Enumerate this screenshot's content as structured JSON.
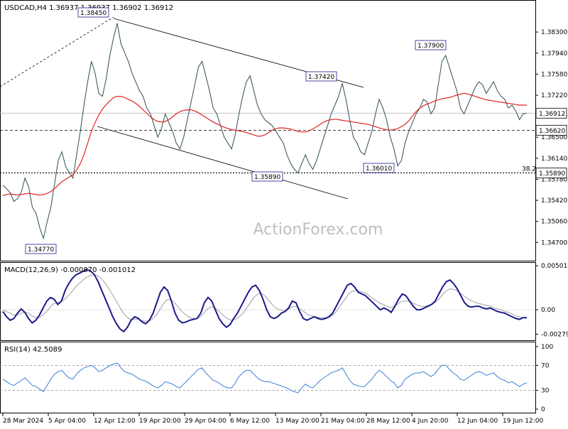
{
  "chart_data": [
    {
      "type": "line",
      "panel": "price",
      "title": "USDCAD,H4  1.36937 1.36937 1.36902 1.36912",
      "watermark": "ActionForex.com",
      "ylim": [
        1.344,
        1.388
      ],
      "y_ticks": [
        "1.38300",
        "1.37940",
        "1.37580",
        "1.37220",
        "1.36860",
        "1.36500",
        "1.36140",
        "1.35780",
        "1.35420",
        "1.35060",
        "1.34700"
      ],
      "x_ticks": [
        "28 Mar 2024",
        "5 Apr 04:00",
        "12 Apr 12:00",
        "19 Apr 20:00",
        "29 Apr 04:00",
        "6 May 12:00",
        "13 May 20:00",
        "21 May 04:00",
        "28 May 12:00",
        "4 Jun 20:00",
        "12 Jun 04:00",
        "19 Jun 12:00"
      ],
      "price_labels": [
        "1.38450",
        "1.37900",
        "1.37420",
        "1.36010",
        "1.35890",
        "1.34770"
      ],
      "current_price": "1.36912",
      "support_level": "1.36620",
      "fib_level": {
        "label": "38.2",
        "value": "1.35890"
      },
      "series": [
        {
          "name": "price",
          "color": "#2f4f4f",
          "values": [
            1.3568,
            1.3562,
            1.3555,
            1.354,
            1.3545,
            1.3556,
            1.358,
            1.3565,
            1.353,
            1.352,
            1.3495,
            1.3477,
            1.3505,
            1.353,
            1.357,
            1.361,
            1.3625,
            1.36,
            1.359,
            1.358,
            1.362,
            1.366,
            1.3705,
            1.3745,
            1.378,
            1.376,
            1.3725,
            1.372,
            1.375,
            1.379,
            1.382,
            1.3845,
            1.381,
            1.3795,
            1.378,
            1.376,
            1.3745,
            1.373,
            1.372,
            1.37,
            1.369,
            1.367,
            1.365,
            1.3665,
            1.369,
            1.3675,
            1.366,
            1.364,
            1.363,
            1.365,
            1.368,
            1.371,
            1.374,
            1.377,
            1.378,
            1.3755,
            1.373,
            1.37,
            1.369,
            1.367,
            1.365,
            1.364,
            1.363,
            1.3655,
            1.369,
            1.372,
            1.3745,
            1.3755,
            1.373,
            1.3705,
            1.369,
            1.368,
            1.3675,
            1.367,
            1.366,
            1.365,
            1.364,
            1.362,
            1.3605,
            1.3595,
            1.3589,
            1.3605,
            1.362,
            1.3605,
            1.3595,
            1.361,
            1.363,
            1.365,
            1.367,
            1.369,
            1.3705,
            1.372,
            1.3742,
            1.3715,
            1.368,
            1.365,
            1.364,
            1.3625,
            1.362,
            1.364,
            1.366,
            1.369,
            1.3715,
            1.37,
            1.368,
            1.365,
            1.363,
            1.3601,
            1.361,
            1.364,
            1.366,
            1.3675,
            1.369,
            1.37,
            1.3715,
            1.371,
            1.369,
            1.37,
            1.374,
            1.378,
            1.379,
            1.377,
            1.375,
            1.373,
            1.37,
            1.369,
            1.3705,
            1.372,
            1.3735,
            1.3745,
            1.374,
            1.3725,
            1.3735,
            1.3745,
            1.373,
            1.372,
            1.3715,
            1.37,
            1.3705,
            1.3695,
            1.368,
            1.369,
            1.3691
          ]
        },
        {
          "name": "MA",
          "color": "#e02424",
          "values": [
            1.355,
            1.3552,
            1.3553,
            1.3552,
            1.3551,
            1.3552,
            1.3553,
            1.3554,
            1.3553,
            1.3552,
            1.3551,
            1.3552,
            1.3554,
            1.3557,
            1.3562,
            1.3568,
            1.3574,
            1.3578,
            1.3582,
            1.3586,
            1.3594,
            1.3605,
            1.362,
            1.364,
            1.366,
            1.3675,
            1.3688,
            1.3698,
            1.3706,
            1.3712,
            1.3718,
            1.372,
            1.372,
            1.3718,
            1.3715,
            1.3712,
            1.3708,
            1.3703,
            1.3697,
            1.3691,
            1.3685,
            1.368,
            1.3677,
            1.3676,
            1.3677,
            1.368,
            1.3685,
            1.369,
            1.3694,
            1.3696,
            1.3697,
            1.3697,
            1.3695,
            1.3692,
            1.3688,
            1.3684,
            1.368,
            1.3676,
            1.3673,
            1.367,
            1.3667,
            1.3665,
            1.3663,
            1.3662,
            1.3661,
            1.366,
            1.3658,
            1.3656,
            1.3654,
            1.3652,
            1.3652,
            1.3654,
            1.3658,
            1.3662,
            1.3665,
            1.3666,
            1.3666,
            1.3665,
            1.3664,
            1.3662,
            1.366,
            1.3659,
            1.3659,
            1.3661,
            1.3664,
            1.3668,
            1.3672,
            1.3676,
            1.3679,
            1.368,
            1.3681,
            1.368,
            1.3679,
            1.3678,
            1.3677,
            1.3676,
            1.3675,
            1.3674,
            1.3673,
            1.3672,
            1.367,
            1.3668,
            1.3666,
            1.3664,
            1.3663,
            1.3662,
            1.3663,
            1.3665,
            1.3668,
            1.3672,
            1.3678,
            1.3686,
            1.3694,
            1.37,
            1.3704,
            1.3707,
            1.3709,
            1.3712,
            1.3714,
            1.3716,
            1.3717,
            1.3718,
            1.372,
            1.3722,
            1.3724,
            1.3725,
            1.3724,
            1.3722,
            1.372,
            1.3718,
            1.3716,
            1.3714,
            1.3713,
            1.3712,
            1.3711,
            1.371,
            1.3709,
            1.3708,
            1.3707,
            1.3706,
            1.3705,
            1.3705,
            1.3705
          ]
        }
      ]
    },
    {
      "type": "line",
      "panel": "macd",
      "title": "MACD(12,26,9) -0.000870 -0.001012",
      "ylim": [
        -0.0034,
        0.0052
      ],
      "y_ticks": [
        "0.005018",
        "0.00",
        "-0.002795"
      ],
      "series": [
        {
          "name": "MACD",
          "color": "#1a1a8c",
          "values": [
            -0.0002,
            -0.0008,
            -0.0012,
            -0.001,
            -0.0004,
            0.0001,
            -0.0003,
            -0.001,
            -0.0015,
            -0.0012,
            -0.0006,
            0.0002,
            0.001,
            0.0014,
            0.0012,
            0.0006,
            0.001,
            0.0022,
            0.003,
            0.0036,
            0.004,
            0.0042,
            0.0044,
            0.0046,
            0.0044,
            0.004,
            0.0032,
            0.0022,
            0.0012,
            0.0002,
            -0.0008,
            -0.0016,
            -0.0022,
            -0.0025,
            -0.002,
            -0.0012,
            -0.0008,
            -0.001,
            -0.0014,
            -0.0016,
            -0.0012,
            -0.0004,
            0.0008,
            0.002,
            0.0026,
            0.0022,
            0.001,
            -0.0004,
            -0.0012,
            -0.0015,
            -0.0014,
            -0.0012,
            -0.0011,
            -0.001,
            -0.0004,
            0.0008,
            0.0014,
            0.001,
            0.0,
            -0.001,
            -0.0016,
            -0.002,
            -0.0017,
            -0.001,
            -0.0004,
            0.0004,
            0.0012,
            0.002,
            0.0026,
            0.0028,
            0.0022,
            0.0012,
            0.0,
            -0.0008,
            -0.001,
            -0.0008,
            -0.0004,
            -0.0002,
            0.0002,
            0.001,
            0.0008,
            -0.0002,
            -0.001,
            -0.0012,
            -0.001,
            -0.0008,
            -0.001,
            -0.0011,
            -0.001,
            -0.0008,
            -0.0004,
            0.0004,
            0.0012,
            0.002,
            0.0028,
            0.003,
            0.0026,
            0.002,
            0.0018,
            0.0016,
            0.0012,
            0.0008,
            0.0004,
            0.0,
            0.0002,
            0.0,
            -0.0003,
            0.0004,
            0.0012,
            0.0018,
            0.0016,
            0.001,
            0.0004,
            0.0,
            0.0,
            0.0002,
            0.0004,
            0.0006,
            0.001,
            0.0018,
            0.0026,
            0.0032,
            0.0034,
            0.003,
            0.0024,
            0.0016,
            0.0008,
            0.0004,
            0.0003,
            0.0004,
            0.0004,
            0.0002,
            0.0001,
            0.0002,
            0.0,
            -0.0002,
            -0.0003,
            -0.0004,
            -0.0006,
            -0.0008,
            -0.001,
            -0.0011,
            -0.0009,
            -0.0009
          ]
        },
        {
          "name": "Signal",
          "color": "#a0a0a0",
          "values": [
            0.0,
            -0.0002,
            -0.0004,
            -0.0006,
            -0.0006,
            -0.0004,
            -0.0003,
            -0.0004,
            -0.0007,
            -0.0009,
            -0.0009,
            -0.0006,
            -0.0002,
            0.0003,
            0.0007,
            0.0008,
            0.0009,
            0.0012,
            0.0016,
            0.0021,
            0.0026,
            0.003,
            0.0034,
            0.0037,
            0.0039,
            0.004,
            0.0039,
            0.0036,
            0.0031,
            0.0025,
            0.0018,
            0.0011,
            0.0004,
            -0.0003,
            -0.0008,
            -0.0011,
            -0.0011,
            -0.0011,
            -0.0012,
            -0.0013,
            -0.0013,
            -0.0011,
            -0.0007,
            -0.0001,
            0.0006,
            0.0011,
            0.0012,
            0.0009,
            0.0004,
            -0.0001,
            -0.0005,
            -0.0008,
            -0.001,
            -0.001,
            -0.0009,
            -0.0005,
            0.0,
            0.0003,
            0.0003,
            0.0,
            -0.0004,
            -0.0008,
            -0.0011,
            -0.0012,
            -0.0011,
            -0.0008,
            -0.0004,
            0.0002,
            0.0008,
            0.0014,
            0.0018,
            0.0019,
            0.0016,
            0.0011,
            0.0006,
            0.0002,
            0.0,
            -0.0001,
            -0.0001,
            0.0002,
            0.0004,
            0.0003,
            0.0,
            -0.0003,
            -0.0006,
            -0.0007,
            -0.0008,
            -0.0009,
            -0.0009,
            -0.0009,
            -0.0008,
            -0.0005,
            0.0,
            0.0006,
            0.0012,
            0.0018,
            0.0021,
            0.0022,
            0.0021,
            0.002,
            0.0018,
            0.0015,
            0.0012,
            0.0009,
            0.0007,
            0.0005,
            0.0003,
            0.0003,
            0.0005,
            0.0008,
            0.001,
            0.001,
            0.0009,
            0.0007,
            0.0005,
            0.0004,
            0.0004,
            0.0005,
            0.0006,
            0.0009,
            0.0013,
            0.0018,
            0.0022,
            0.0024,
            0.0023,
            0.0021,
            0.0018,
            0.0015,
            0.0012,
            0.001,
            0.0008,
            0.0007,
            0.0006,
            0.0005,
            0.0004,
            0.0002,
            0.0001,
            0.0,
            -0.0002,
            -0.0003,
            -0.0005,
            -0.0007,
            -0.0008,
            -0.0009,
            -0.001
          ]
        }
      ]
    },
    {
      "type": "line",
      "panel": "rsi",
      "title": "RSI(14) 42.5089",
      "ylim": [
        0,
        100
      ],
      "y_ticks": [
        "100",
        "70",
        "30",
        "0"
      ],
      "levels": [
        70,
        30
      ],
      "series": [
        {
          "name": "RSI",
          "color": "#3a7fd5",
          "values": [
            48,
            44,
            40,
            38,
            42,
            46,
            50,
            44,
            38,
            36,
            32,
            28,
            38,
            48,
            56,
            60,
            62,
            55,
            50,
            48,
            56,
            62,
            66,
            68,
            70,
            66,
            60,
            62,
            66,
            70,
            72,
            74,
            66,
            60,
            58,
            56,
            52,
            48,
            46,
            44,
            40,
            36,
            34,
            38,
            44,
            42,
            40,
            36,
            34,
            40,
            46,
            52,
            58,
            64,
            66,
            58,
            52,
            46,
            44,
            40,
            36,
            34,
            34,
            42,
            52,
            58,
            62,
            62,
            56,
            50,
            46,
            44,
            44,
            42,
            40,
            38,
            36,
            34,
            30,
            28,
            26,
            34,
            40,
            36,
            34,
            40,
            46,
            50,
            54,
            58,
            60,
            62,
            66,
            56,
            46,
            40,
            38,
            36,
            36,
            42,
            48,
            56,
            62,
            58,
            52,
            46,
            42,
            34,
            38,
            48,
            52,
            56,
            58,
            58,
            60,
            56,
            52,
            56,
            64,
            70,
            70,
            64,
            58,
            54,
            48,
            46,
            50,
            54,
            58,
            60,
            58,
            54,
            56,
            58,
            52,
            48,
            46,
            42,
            44,
            40,
            36,
            40,
            42
          ]
        }
      ]
    }
  ]
}
